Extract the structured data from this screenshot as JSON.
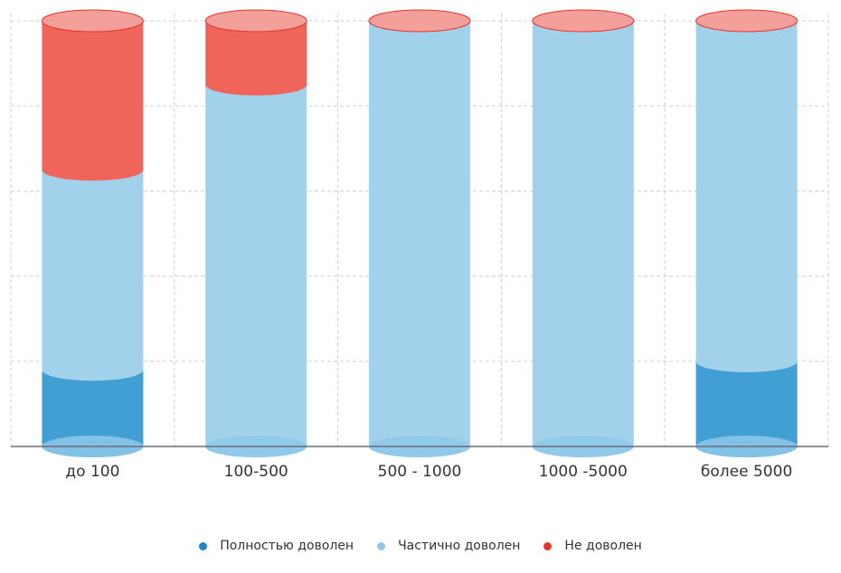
{
  "chart_data": {
    "type": "bar",
    "subtype": "stacked-percent-cylinder",
    "categories": [
      "до 100",
      "100-500",
      "500 - 1000",
      "1000 -5000",
      "более 5000"
    ],
    "series": [
      {
        "name": "Полностью доволен",
        "color": "#1f84c9",
        "values": [
          18,
          0,
          0,
          0,
          20
        ]
      },
      {
        "name": "Частично доволен",
        "color": "#8ec8ea",
        "values": [
          47,
          85,
          100,
          100,
          80
        ]
      },
      {
        "name": "Не доволен",
        "color": "#e8322a",
        "values": [
          35,
          15,
          0,
          0,
          0
        ]
      }
    ],
    "ylim": [
      0,
      100
    ],
    "grid": true,
    "legend": "bottom-center"
  }
}
